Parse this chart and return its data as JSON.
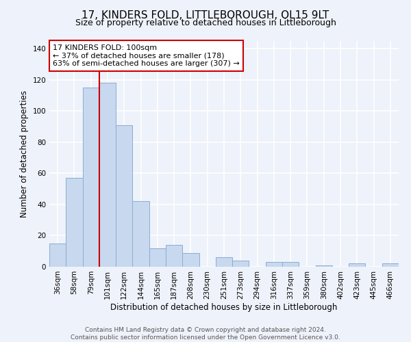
{
  "title": "17, KINDERS FOLD, LITTLEBOROUGH, OL15 9LT",
  "subtitle": "Size of property relative to detached houses in Littleborough",
  "xlabel": "Distribution of detached houses by size in Littleborough",
  "ylabel": "Number of detached properties",
  "bar_labels": [
    "36sqm",
    "58sqm",
    "79sqm",
    "101sqm",
    "122sqm",
    "144sqm",
    "165sqm",
    "187sqm",
    "208sqm",
    "230sqm",
    "251sqm",
    "273sqm",
    "294sqm",
    "316sqm",
    "337sqm",
    "359sqm",
    "380sqm",
    "402sqm",
    "423sqm",
    "445sqm",
    "466sqm"
  ],
  "bar_values": [
    15,
    57,
    115,
    118,
    91,
    42,
    12,
    14,
    9,
    0,
    6,
    4,
    0,
    3,
    3,
    0,
    1,
    0,
    2,
    0,
    2
  ],
  "bar_color": "#c8d8ee",
  "bar_edge_color": "#8aadd4",
  "ylim": [
    0,
    145
  ],
  "yticks": [
    0,
    20,
    40,
    60,
    80,
    100,
    120,
    140
  ],
  "property_label": "17 KINDERS FOLD: 100sqm",
  "annotation_line1": "← 37% of detached houses are smaller (178)",
  "annotation_line2": "63% of semi-detached houses are larger (307) →",
  "vline_x_index": 3,
  "vline_color": "#cc0000",
  "annotation_box_color": "#ffffff",
  "annotation_box_edge_color": "#cc0000",
  "footer_line1": "Contains HM Land Registry data © Crown copyright and database right 2024.",
  "footer_line2": "Contains public sector information licensed under the Open Government Licence v3.0.",
  "background_color": "#eef2fa",
  "plot_background_color": "#eef2fa",
  "grid_color": "#ffffff",
  "title_fontsize": 11,
  "subtitle_fontsize": 9,
  "axis_label_fontsize": 8.5,
  "tick_fontsize": 7.5,
  "annotation_fontsize": 8,
  "footer_fontsize": 6.5
}
